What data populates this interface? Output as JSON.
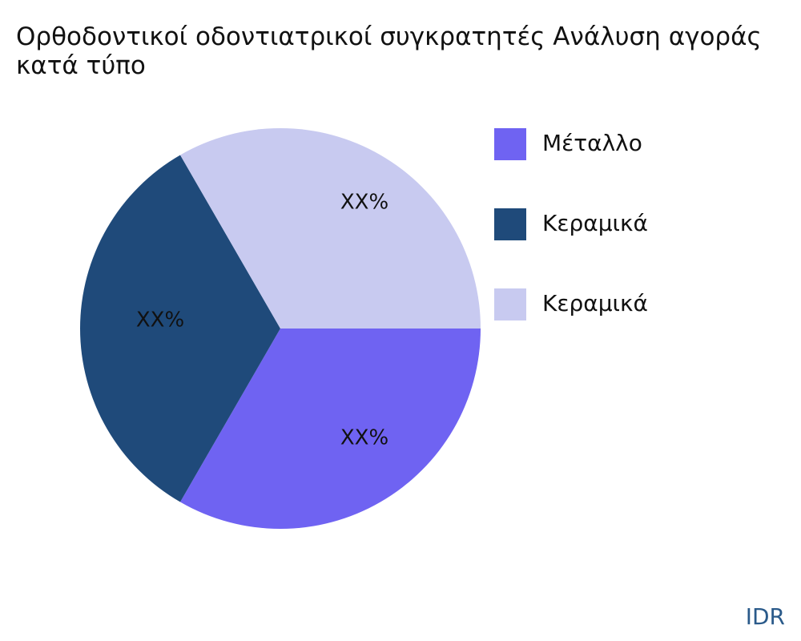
{
  "chart_data": {
    "type": "pie",
    "title": "Ορθοδοντικοί οδοντιατρικοί συγκρατητές Ανάλυση αγοράς κατά τύπο",
    "categories": [
      "Μέταλλο",
      "Κεραμικά",
      "Κεραμικά"
    ],
    "values": [
      33.3,
      33.3,
      33.3
    ],
    "value_labels": [
      "XX%",
      "XX%",
      "XX%"
    ],
    "colors": [
      "#6f63f2",
      "#1f4a7a",
      "#c8caf0"
    ],
    "legend": "right"
  },
  "brand": "IDR"
}
